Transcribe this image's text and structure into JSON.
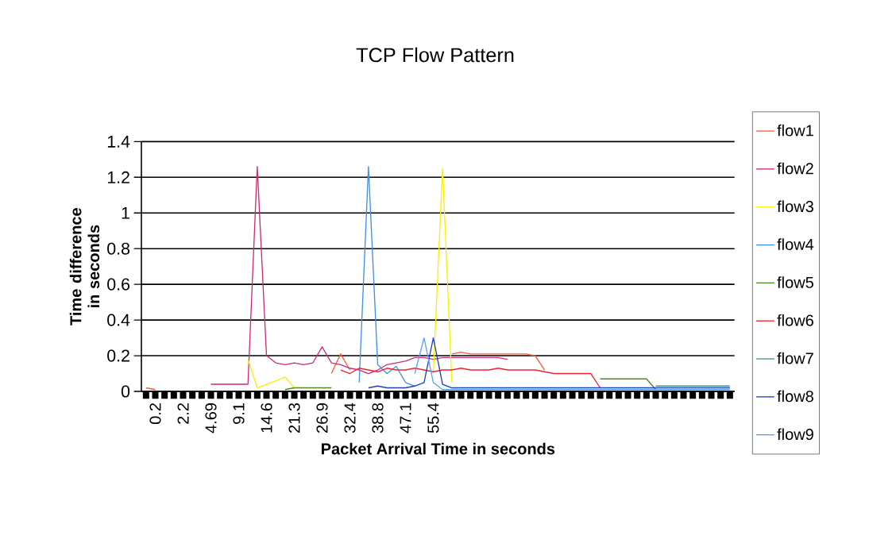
{
  "chart_data": {
    "type": "line",
    "title": "TCP Flow Pattern",
    "xlabel": "Packet Arrival Time in seconds",
    "ylabel": "Time difference in seconds",
    "categories": [
      null,
      "0.2",
      null,
      null,
      "2.2",
      null,
      null,
      "4.69",
      null,
      null,
      "9.1",
      null,
      null,
      "14.6",
      null,
      null,
      "21.3",
      null,
      null,
      "26.9",
      null,
      null,
      "32.4",
      null,
      null,
      "38.8",
      null,
      null,
      "47.1",
      null,
      null,
      "55.4",
      null,
      null,
      null,
      null,
      null,
      null,
      null,
      null,
      null,
      null,
      null,
      null,
      null,
      null,
      null,
      null,
      null,
      null,
      null,
      null,
      null,
      null,
      null,
      null,
      null,
      null,
      null,
      null,
      null,
      null,
      null,
      null
    ],
    "ylim": [
      0,
      1.4
    ],
    "yticks": [
      0,
      0.2,
      0.4,
      0.6,
      0.8,
      1,
      1.2,
      1.4
    ],
    "grid": "y",
    "legend": "right",
    "marker": "none",
    "line_style": "solid",
    "series": [
      {
        "name": "flow1",
        "color": "#ff5a36",
        "values": [
          0.02,
          0.01,
          null,
          null,
          null,
          null,
          null,
          null,
          null,
          null,
          null,
          null,
          null,
          null,
          null,
          null,
          null,
          null,
          null,
          null,
          0.1,
          0.21,
          0.12,
          null,
          null,
          null,
          null,
          null,
          null,
          null,
          null,
          null,
          null,
          0.21,
          0.22,
          0.21,
          0.21,
          0.21,
          0.21,
          0.21,
          0.21,
          0.21,
          0.2,
          0.12,
          null,
          null,
          null,
          null,
          null,
          null,
          null,
          null,
          null,
          null,
          null,
          null,
          null,
          null,
          null,
          null,
          null,
          null,
          null,
          null
        ]
      },
      {
        "name": "flow2",
        "color": "#cc2a7a",
        "values": [
          null,
          null,
          null,
          null,
          null,
          null,
          null,
          0.04,
          0.04,
          0.04,
          0.04,
          0.04,
          1.26,
          0.2,
          0.16,
          0.15,
          0.16,
          0.15,
          0.16,
          0.25,
          0.16,
          0.15,
          0.13,
          0.12,
          0.1,
          0.12,
          0.15,
          0.16,
          0.17,
          0.19,
          0.19,
          0.18,
          0.19,
          0.19,
          0.19,
          0.19,
          0.19,
          0.19,
          0.19,
          0.18,
          null,
          null,
          null,
          null,
          null,
          null,
          null,
          null,
          null,
          null,
          null,
          null,
          null,
          null,
          null,
          null,
          null,
          null,
          null,
          null,
          null,
          null,
          null,
          null
        ]
      },
      {
        "name": "flow3",
        "color": "#ffee00",
        "values": [
          null,
          null,
          null,
          null,
          null,
          null,
          null,
          null,
          null,
          null,
          null,
          0.18,
          0.02,
          0.04,
          0.06,
          0.08,
          0.02,
          null,
          null,
          null,
          null,
          null,
          null,
          null,
          null,
          null,
          null,
          null,
          null,
          null,
          null,
          0.1,
          1.25,
          0.05,
          null,
          null,
          null,
          null,
          null,
          null,
          null,
          null,
          null,
          null,
          null,
          null,
          null,
          null,
          null,
          null,
          null,
          null,
          null,
          null,
          null,
          null,
          null,
          null,
          null,
          null,
          null,
          null,
          null,
          null
        ]
      },
      {
        "name": "flow4",
        "color": "#3f8fe8",
        "values": [
          null,
          null,
          null,
          null,
          null,
          null,
          null,
          null,
          null,
          null,
          null,
          null,
          null,
          null,
          null,
          null,
          null,
          null,
          null,
          null,
          null,
          null,
          null,
          0.05,
          1.26,
          0.15,
          0.1,
          0.14,
          0.05,
          0.03,
          null,
          null,
          null,
          null,
          null,
          null,
          null,
          null,
          null,
          null,
          null,
          null,
          null,
          null,
          null,
          null,
          null,
          null,
          null,
          null,
          null,
          null,
          null,
          null,
          null,
          null,
          null,
          null,
          null,
          null,
          null,
          null,
          null,
          null
        ]
      },
      {
        "name": "flow5",
        "color": "#4c8a1e",
        "values": [
          null,
          null,
          null,
          null,
          null,
          null,
          null,
          null,
          null,
          null,
          null,
          null,
          null,
          null,
          null,
          0.01,
          0.02,
          0.02,
          0.02,
          0.02,
          0.02,
          null,
          null,
          null,
          null,
          null,
          null,
          null,
          null,
          null,
          null,
          null,
          null,
          null,
          null,
          null,
          null,
          null,
          null,
          null,
          null,
          null,
          null,
          null,
          null,
          null,
          null,
          null,
          null,
          0.07,
          0.07,
          0.07,
          0.07,
          0.07,
          0.07,
          0.01,
          null,
          null,
          null,
          null,
          null,
          null,
          null,
          null
        ]
      },
      {
        "name": "flow6",
        "color": "#ee2233",
        "values": [
          null,
          null,
          null,
          null,
          null,
          null,
          null,
          null,
          null,
          null,
          null,
          null,
          null,
          null,
          null,
          null,
          null,
          null,
          null,
          null,
          null,
          0.12,
          0.1,
          0.13,
          0.12,
          0.11,
          0.13,
          0.12,
          0.12,
          0.13,
          0.12,
          0.11,
          0.12,
          0.12,
          0.13,
          0.12,
          0.12,
          0.12,
          0.13,
          0.12,
          0.12,
          0.12,
          0.12,
          0.11,
          0.1,
          0.1,
          0.1,
          0.1,
          0.1,
          0.02,
          null,
          null,
          null,
          null,
          null,
          null,
          null,
          null,
          null,
          null,
          null,
          null,
          null,
          null
        ]
      },
      {
        "name": "flow7",
        "color": "#4a8a8a",
        "values": [
          null,
          null,
          null,
          null,
          null,
          null,
          null,
          null,
          null,
          null,
          null,
          null,
          null,
          null,
          null,
          null,
          null,
          null,
          null,
          null,
          null,
          null,
          null,
          null,
          null,
          null,
          null,
          null,
          null,
          null,
          null,
          null,
          null,
          null,
          null,
          null,
          null,
          null,
          null,
          null,
          null,
          null,
          null,
          null,
          null,
          null,
          null,
          null,
          null,
          null,
          null,
          null,
          null,
          null,
          null,
          0.03,
          0.03,
          0.03,
          0.03,
          0.03,
          0.03,
          0.03,
          0.03,
          0.03
        ]
      },
      {
        "name": "flow8",
        "color": "#1f3fbf",
        "values": [
          null,
          null,
          null,
          null,
          null,
          null,
          null,
          null,
          null,
          null,
          null,
          null,
          null,
          null,
          null,
          null,
          null,
          null,
          null,
          null,
          null,
          null,
          null,
          null,
          0.02,
          0.03,
          0.02,
          0.02,
          0.02,
          0.03,
          0.05,
          0.3,
          0.04,
          0.02,
          0.02,
          0.02,
          0.02,
          0.02,
          0.02,
          0.02,
          0.02,
          0.02,
          0.02,
          0.02,
          0.02,
          0.02,
          0.02,
          0.02,
          0.02,
          0.02,
          0.02,
          0.02,
          0.02,
          0.02,
          0.02,
          0.02,
          0.02,
          0.02,
          0.02,
          0.02,
          0.02,
          0.02,
          0.02,
          0.02
        ]
      },
      {
        "name": "flow9",
        "color": "#5aa0f0",
        "values": [
          null,
          null,
          null,
          null,
          null,
          null,
          null,
          null,
          null,
          null,
          null,
          null,
          null,
          null,
          null,
          null,
          null,
          null,
          null,
          null,
          null,
          null,
          null,
          null,
          null,
          null,
          null,
          null,
          null,
          0.1,
          0.3,
          0.05,
          0.01,
          0.01,
          0.01,
          0.01,
          0.01,
          0.01,
          0.01,
          0.01,
          0.01,
          0.01,
          0.01,
          0.01,
          0.01,
          0.01,
          0.01,
          0.01,
          0.01,
          0.01,
          0.01,
          0.01,
          0.01,
          0.01,
          0.01,
          0.01,
          0.01,
          0.01,
          0.01,
          0.01,
          0.01,
          0.01,
          0.01,
          0.01
        ]
      }
    ]
  }
}
